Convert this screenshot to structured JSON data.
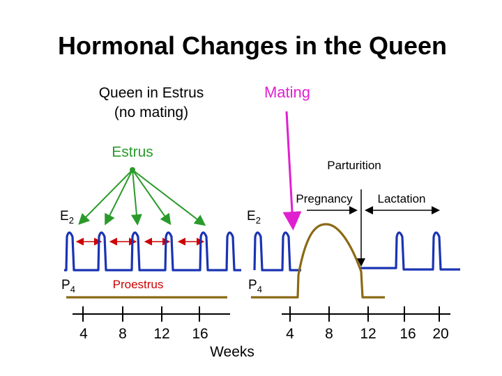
{
  "title": "Hormonal Changes in the Queen",
  "labels": {
    "queen_estrus_line1": "Queen in Estrus",
    "queen_estrus_line2": "(no mating)",
    "mating": "Mating",
    "estrus": "Estrus",
    "parturition": "Parturition",
    "pregnancy": "Pregnancy",
    "lactation": "Lactation",
    "e2_left_main": "E",
    "e2_left_sub": "2",
    "e2_right_main": "E",
    "e2_right_sub": "2",
    "p4_left_main": "P",
    "p4_left_sub": "4",
    "p4_right_main": "P",
    "p4_right_sub": "4",
    "proestrus": "Proestrus",
    "weeks": "Weeks"
  },
  "axis": {
    "left_ticks": [
      "4",
      "8",
      "12",
      "16"
    ],
    "right_ticks": [
      "4",
      "8",
      "12",
      "16",
      "20"
    ]
  },
  "colors": {
    "estradiol": "#1a33b3",
    "progesterone": "#8b6914",
    "estrus_arrows": "#2a9a2a",
    "mating": "#e020d0",
    "proestrus_arrows": "#cc0000",
    "text": "#000000"
  }
}
